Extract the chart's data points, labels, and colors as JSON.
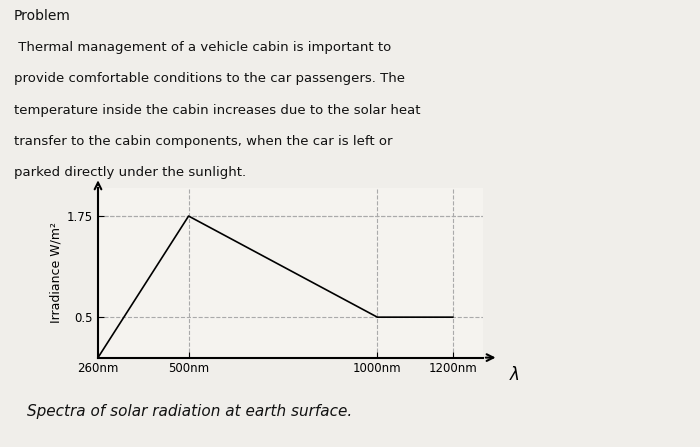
{
  "problem_label": "Problem",
  "paragraph_lines": [
    " Thermal management of a vehicle cabin is important to",
    "provide comfortable conditions to the car passengers. The",
    "temperature inside the cabin increases due to the solar heat",
    "transfer to the cabin components, when the car is left or",
    "parked directly under the sunlight."
  ],
  "caption": "Spectra of solar radiation at earth surface.",
  "x_values": [
    260,
    500,
    1000,
    1200
  ],
  "y_values": [
    0.0,
    1.75,
    0.5,
    0.5
  ],
  "x_ticks": [
    260,
    500,
    1000,
    1200
  ],
  "x_tick_labels": [
    "260nm",
    "500nm",
    "1000nm",
    "1200nm"
  ],
  "y_ticks": [
    0.5,
    1.75
  ],
  "y_tick_labels": [
    "0.5",
    "1.75"
  ],
  "ylabel": "Irradiance W/m²",
  "xlabel_symbol": "λ",
  "xlim": [
    260,
    1280
  ],
  "ylim": [
    0,
    2.1
  ],
  "line_color": "#000000",
  "grid_color": "#aaaaaa",
  "plot_bg_color": "#f5f3ef",
  "fig_bg_color": "#f0eeea",
  "text_color": "#111111",
  "border_color": "#333333"
}
